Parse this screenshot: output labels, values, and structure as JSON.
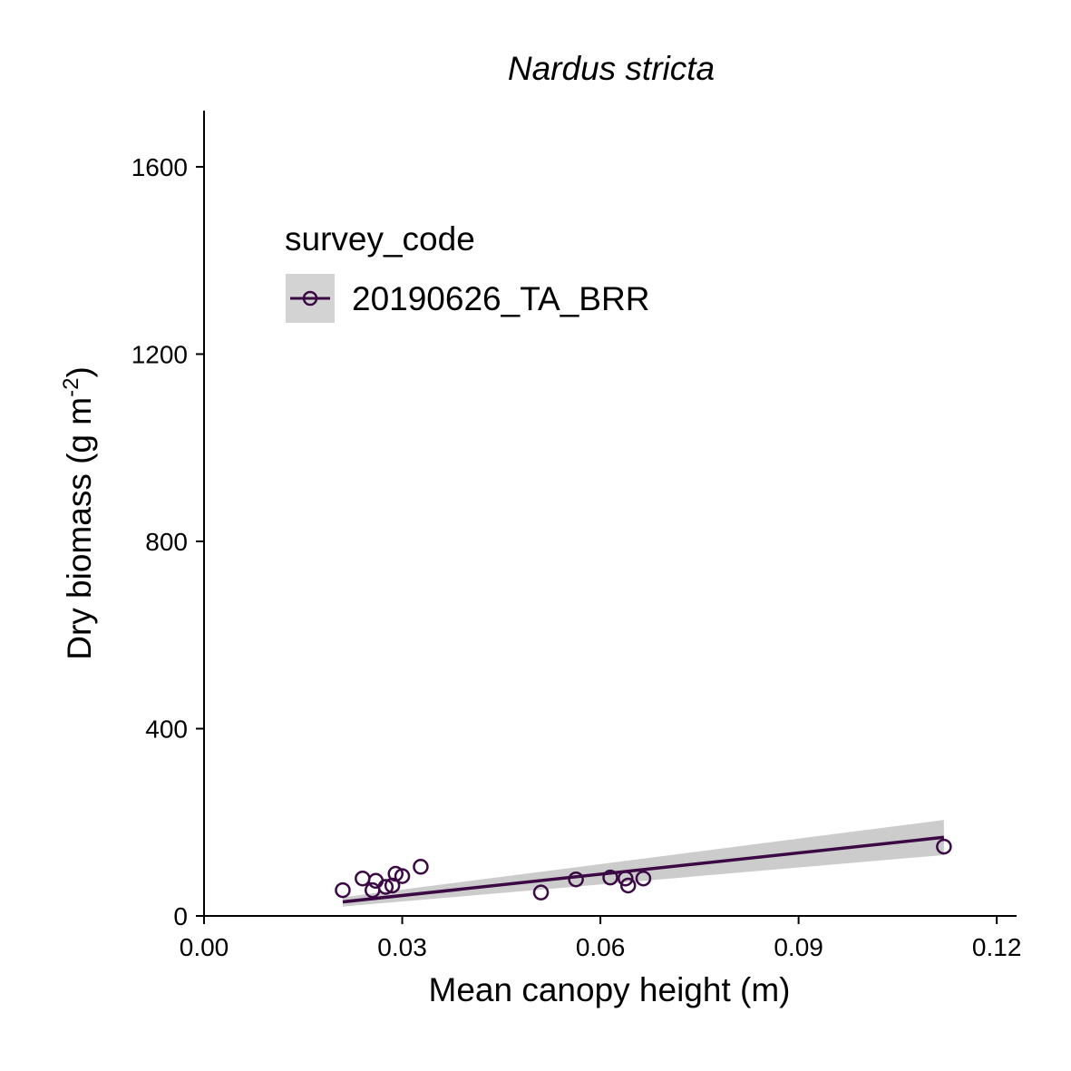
{
  "chart_data": {
    "type": "scatter",
    "title": "Nardus stricta",
    "xlabel": "Mean canopy height (m)",
    "ylabel_main": "Dry biomass (g m",
    "ylabel_sup": "-2",
    "ylabel_close": ")",
    "xlim": [
      0,
      0.123
    ],
    "ylim": [
      0,
      1720
    ],
    "x_ticks": [
      0,
      0.03,
      0.06,
      0.09,
      0.12
    ],
    "x_tick_labels": [
      "0.00",
      "0.03",
      "0.06",
      "0.09",
      "0.12"
    ],
    "y_ticks": [
      0,
      400,
      800,
      1200,
      1600
    ],
    "y_tick_labels": [
      "0",
      "400",
      "800",
      "1200",
      "1600"
    ],
    "grid": false,
    "legend": {
      "title": "survey_code",
      "placement": "top-left",
      "entries": [
        "20190626_TA_BRR"
      ]
    },
    "series": [
      {
        "name": "20190626_TA_BRR",
        "color": "#3b0a45",
        "marker": "open-circle",
        "points": [
          {
            "x": 0.021,
            "y": 55
          },
          {
            "x": 0.024,
            "y": 80
          },
          {
            "x": 0.0255,
            "y": 55
          },
          {
            "x": 0.026,
            "y": 75
          },
          {
            "x": 0.0275,
            "y": 62
          },
          {
            "x": 0.0285,
            "y": 65
          },
          {
            "x": 0.029,
            "y": 90
          },
          {
            "x": 0.03,
            "y": 85
          },
          {
            "x": 0.0328,
            "y": 105
          },
          {
            "x": 0.051,
            "y": 50
          },
          {
            "x": 0.0563,
            "y": 78
          },
          {
            "x": 0.0615,
            "y": 82
          },
          {
            "x": 0.0638,
            "y": 80
          },
          {
            "x": 0.0642,
            "y": 65
          },
          {
            "x": 0.0665,
            "y": 80
          },
          {
            "x": 0.112,
            "y": 148
          }
        ],
        "fit": {
          "x": [
            0.021,
            0.112
          ],
          "y": [
            30,
            168
          ],
          "ci_lower": [
            20,
            130
          ],
          "ci_upper": [
            40,
            205
          ]
        }
      }
    ],
    "ribbon_color": "#cccccc"
  }
}
